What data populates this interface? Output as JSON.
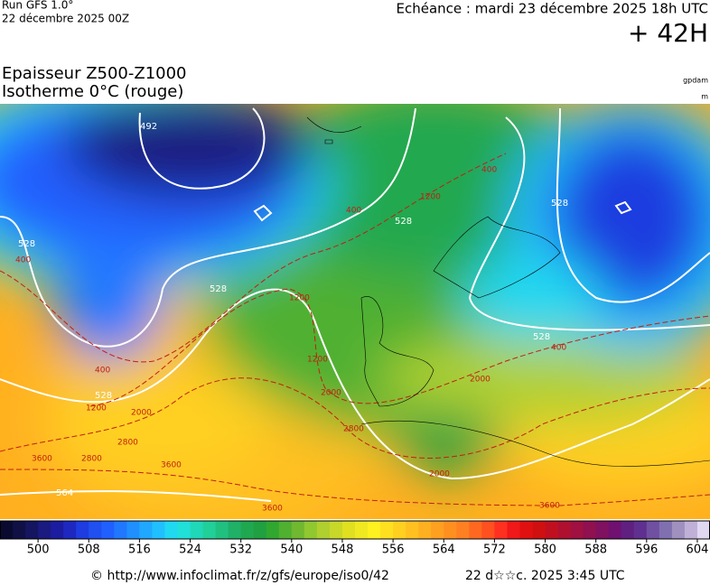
{
  "header": {
    "run": "Run GFS 1.0°",
    "run_date": "22 décembre 2025 00Z",
    "valid": "Echéance : mardi 23 décembre 2025 18h UTC",
    "lead": "+ 42H",
    "title": "Epaisseur Z500-Z1000",
    "subtitle": "Isotherme 0°C (rouge)",
    "unit_thickness": "gpdam",
    "unit_iso": "m"
  },
  "map": {
    "thickness_labels": [
      492,
      528,
      528,
      528,
      528,
      528,
      528,
      564
    ],
    "iso0_labels": [
      400,
      400,
      400,
      400,
      400,
      1200,
      1200,
      1200,
      1200,
      2000,
      2000,
      2000,
      2000,
      2800,
      2800,
      2800,
      3600,
      3600,
      3600,
      3600
    ]
  },
  "colorbar": {
    "range": [
      494,
      606
    ],
    "ticks": [
      500,
      508,
      516,
      524,
      532,
      540,
      548,
      556,
      564,
      572,
      580,
      588,
      596,
      604
    ],
    "colors": [
      "#0a0a30",
      "#101045",
      "#151560",
      "#1a1a80",
      "#1c1ca0",
      "#1e28c0",
      "#1e3ce0",
      "#2050f0",
      "#2060ff",
      "#2078ff",
      "#2090ff",
      "#20a8ff",
      "#20c0ff",
      "#20d8f0",
      "#20e0d8",
      "#20d8b8",
      "#20d098",
      "#20c080",
      "#20b068",
      "#20a850",
      "#20a040",
      "#30a830",
      "#50b030",
      "#70b830",
      "#90c830",
      "#b0d030",
      "#c8d828",
      "#e0e020",
      "#f0e820",
      "#fff020",
      "#ffe020",
      "#ffd020",
      "#ffc020",
      "#ffb020",
      "#ffa020",
      "#ff9020",
      "#ff8020",
      "#ff6820",
      "#ff5020",
      "#ff3020",
      "#f01818",
      "#e01010",
      "#d01010",
      "#c01020",
      "#b01030",
      "#a01040",
      "#901050",
      "#801060",
      "#701070",
      "#602080",
      "#603090",
      "#7050a0",
      "#8070b0",
      "#a090c0",
      "#c0b0d8",
      "#e0d8f0"
    ]
  },
  "footer": {
    "source": "© http://www.infoclimat.fr/z/gfs/europe/iso0/42",
    "generated": "22 d☆☆c. 2025  3:45 UTC"
  }
}
